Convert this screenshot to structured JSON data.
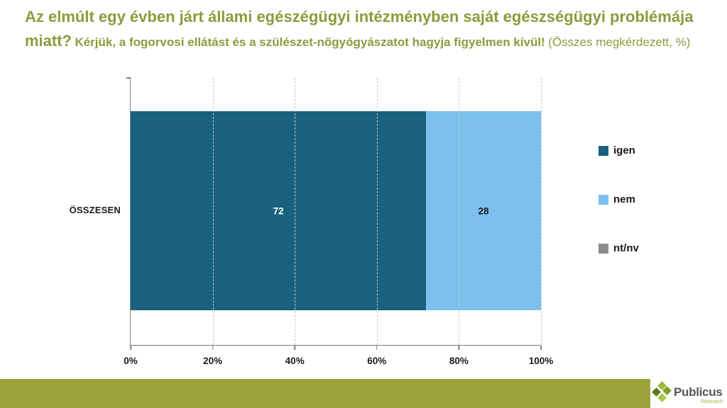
{
  "title": {
    "question_main": "Az elmúlt egy évben járt állami egészégügyi intézményben saját egészségügyi problémája miatt?",
    "question_note": "Kérjük, a fogorvosi ellátást és a szülészet-nőgyógyászatot hagyja figyelmen kívül!",
    "question_base": "(Összes megkérdezett, %)",
    "color": "#8C9B3B"
  },
  "chart_data": {
    "type": "bar",
    "orientation": "horizontal",
    "stacked": true,
    "categories": [
      "ÖSSZESEN"
    ],
    "series": [
      {
        "name": "igen",
        "values": [
          72
        ],
        "color": "#1A607F",
        "label_color": "#FFFFFF"
      },
      {
        "name": "nem",
        "values": [
          28
        ],
        "color": "#7CC0ED",
        "label_color": "#1A1A1A"
      },
      {
        "name": "nt/nv",
        "values": [
          0
        ],
        "color": "#8C8C8C",
        "label_color": "#1A1A1A"
      }
    ],
    "xticks": [
      "0%",
      "20%",
      "40%",
      "60%",
      "80%",
      "100%"
    ],
    "xlim": [
      0,
      100
    ],
    "grid": "dashed-vertical",
    "legend_position": "right",
    "axis_color": "#808080",
    "gridline_color": "#C9C9C9"
  },
  "footer": {
    "bar_color": "#9AA33C",
    "brand_name": "Publicus",
    "brand_subtitle": "Research"
  }
}
